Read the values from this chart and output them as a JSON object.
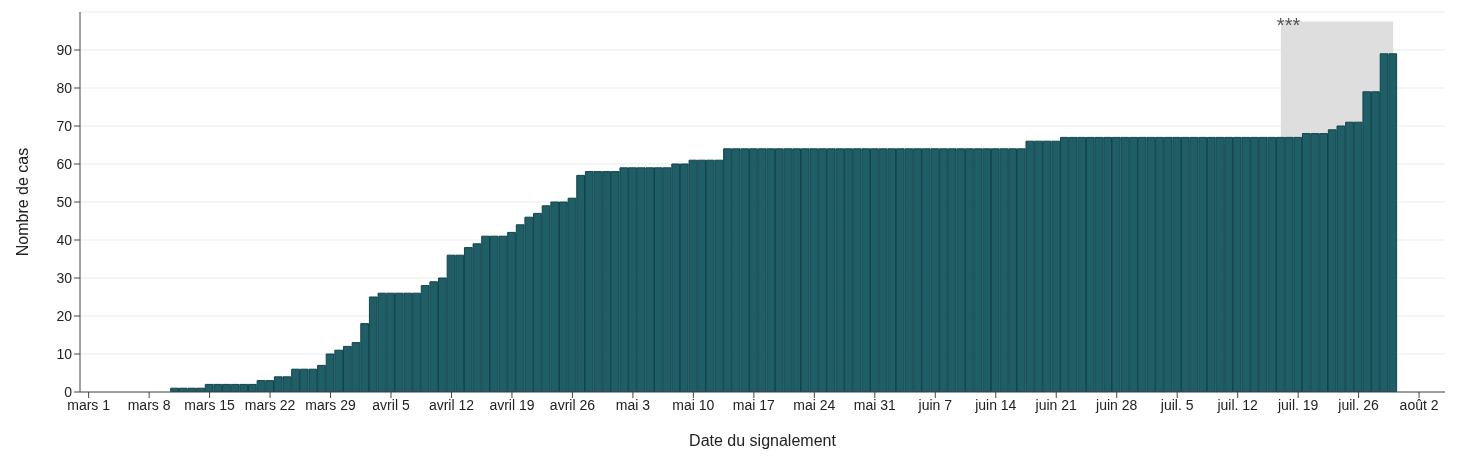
{
  "chart_data": {
    "type": "bar",
    "xlabel": "Date du signalement",
    "ylabel": "Nombre de cas",
    "x": [
      "--03-11",
      "--03-12",
      "--03-13",
      "--03-14",
      "--03-15",
      "--03-16",
      "--03-17",
      "--03-18",
      "--03-19",
      "--03-20",
      "--03-21",
      "--03-22",
      "--03-23",
      "--03-24",
      "--03-25",
      "--03-26",
      "--03-27",
      "--03-28",
      "--03-29",
      "--03-30",
      "--03-31",
      "--04-01",
      "--04-02",
      "--04-03",
      "--04-04",
      "--04-05",
      "--04-06",
      "--04-07",
      "--04-08",
      "--04-09",
      "--04-10",
      "--04-11",
      "--04-12",
      "--04-13",
      "--04-14",
      "--04-15",
      "--04-16",
      "--04-17",
      "--04-18",
      "--04-19",
      "--04-20",
      "--04-21",
      "--04-22",
      "--04-23",
      "--04-24",
      "--04-25",
      "--04-26",
      "--04-27",
      "--04-28",
      "--04-29",
      "--04-30",
      "--05-01",
      "--05-02",
      "--05-03",
      "--05-04",
      "--05-05",
      "--05-06",
      "--05-07",
      "--05-08",
      "--05-09",
      "--05-10",
      "--05-11",
      "--05-12",
      "--05-13",
      "--05-14",
      "--05-15",
      "--05-16",
      "--05-17",
      "--05-18",
      "--05-19",
      "--05-20",
      "--05-21",
      "--05-22",
      "--05-23",
      "--05-24",
      "--05-25",
      "--05-26",
      "--05-27",
      "--05-28",
      "--05-29",
      "--05-30",
      "--05-31",
      "--06-01",
      "--06-02",
      "--06-03",
      "--06-04",
      "--06-05",
      "--06-06",
      "--06-07",
      "--06-08",
      "--06-09",
      "--06-10",
      "--06-11",
      "--06-12",
      "--06-13",
      "--06-14",
      "--06-15",
      "--06-16",
      "--06-17",
      "--06-18",
      "--06-19",
      "--06-20",
      "--06-21",
      "--06-22",
      "--06-23",
      "--06-24",
      "--06-25",
      "--06-26",
      "--06-27",
      "--06-28",
      "--06-29",
      "--06-30",
      "--07-01",
      "--07-02",
      "--07-03",
      "--07-04",
      "--07-05",
      "--07-06",
      "--07-07",
      "--07-08",
      "--07-09",
      "--07-10",
      "--07-11",
      "--07-12",
      "--07-13",
      "--07-14",
      "--07-15",
      "--07-16",
      "--07-17",
      "--07-18",
      "--07-19",
      "--07-20",
      "--07-21",
      "--07-22",
      "--07-23",
      "--07-24",
      "--07-25",
      "--07-26",
      "--07-27",
      "--07-28",
      "--07-29",
      "--07-30"
    ],
    "values": [
      1,
      1,
      1,
      1,
      2,
      2,
      2,
      2,
      2,
      2,
      3,
      3,
      4,
      4,
      6,
      6,
      6,
      7,
      10,
      11,
      12,
      13,
      18,
      25,
      26,
      26,
      26,
      26,
      26,
      28,
      29,
      30,
      36,
      36,
      38,
      39,
      41,
      41,
      41,
      42,
      44,
      46,
      47,
      49,
      50,
      50,
      51,
      57,
      58,
      58,
      58,
      58,
      59,
      59,
      59,
      59,
      59,
      59,
      60,
      60,
      61,
      61,
      61,
      61,
      64,
      64,
      64,
      64,
      64,
      64,
      64,
      64,
      64,
      64,
      64,
      64,
      64,
      64,
      64,
      64,
      64,
      64,
      64,
      64,
      64,
      64,
      64,
      64,
      64,
      64,
      64,
      64,
      64,
      64,
      64,
      64,
      64,
      64,
      64,
      66,
      66,
      66,
      66,
      67,
      67,
      67,
      67,
      67,
      67,
      67,
      67,
      67,
      67,
      67,
      67,
      67,
      67,
      67,
      67,
      67,
      67,
      67,
      67,
      67,
      67,
      67,
      67,
      67,
      67,
      67,
      67,
      68,
      68,
      68,
      69,
      70,
      71,
      71,
      79,
      79,
      89,
      89
    ],
    "color": "#1f5e66",
    "xlim": [
      "--02-28",
      "--08-05"
    ],
    "xticks": [
      {
        "value": "--03-01",
        "label": "mars 1"
      },
      {
        "value": "--03-08",
        "label": "mars 8"
      },
      {
        "value": "--03-15",
        "label": "mars 15"
      },
      {
        "value": "--03-22",
        "label": "mars 22"
      },
      {
        "value": "--03-29",
        "label": "mars 29"
      },
      {
        "value": "--04-05",
        "label": "avril 5"
      },
      {
        "value": "--04-12",
        "label": "avril 12"
      },
      {
        "value": "--04-19",
        "label": "avril 19"
      },
      {
        "value": "--04-26",
        "label": "avril 26"
      },
      {
        "value": "--05-03",
        "label": "mai 3"
      },
      {
        "value": "--05-10",
        "label": "mai 10"
      },
      {
        "value": "--05-17",
        "label": "mai 17"
      },
      {
        "value": "--05-24",
        "label": "mai 24"
      },
      {
        "value": "--05-31",
        "label": "mai 31"
      },
      {
        "value": "--06-07",
        "label": "juin 7"
      },
      {
        "value": "--06-14",
        "label": "juin 14"
      },
      {
        "value": "--06-21",
        "label": "juin 21"
      },
      {
        "value": "--06-28",
        "label": "juin 28"
      },
      {
        "value": "--07-05",
        "label": "juil. 5"
      },
      {
        "value": "--07-12",
        "label": "juil. 12"
      },
      {
        "value": "--07-19",
        "label": "juil. 19"
      },
      {
        "value": "--07-26",
        "label": "juil. 26"
      },
      {
        "value": "--08-02",
        "label": "août 2"
      }
    ],
    "ylim": [
      0,
      100
    ],
    "yticks": [
      0,
      10,
      20,
      30,
      40,
      50,
      60,
      70,
      80,
      90
    ],
    "grid": "y",
    "bands": [
      {
        "axis": "x",
        "from": "--07-17",
        "to": "--07-30",
        "label": "***",
        "color": "#dedede"
      }
    ]
  }
}
